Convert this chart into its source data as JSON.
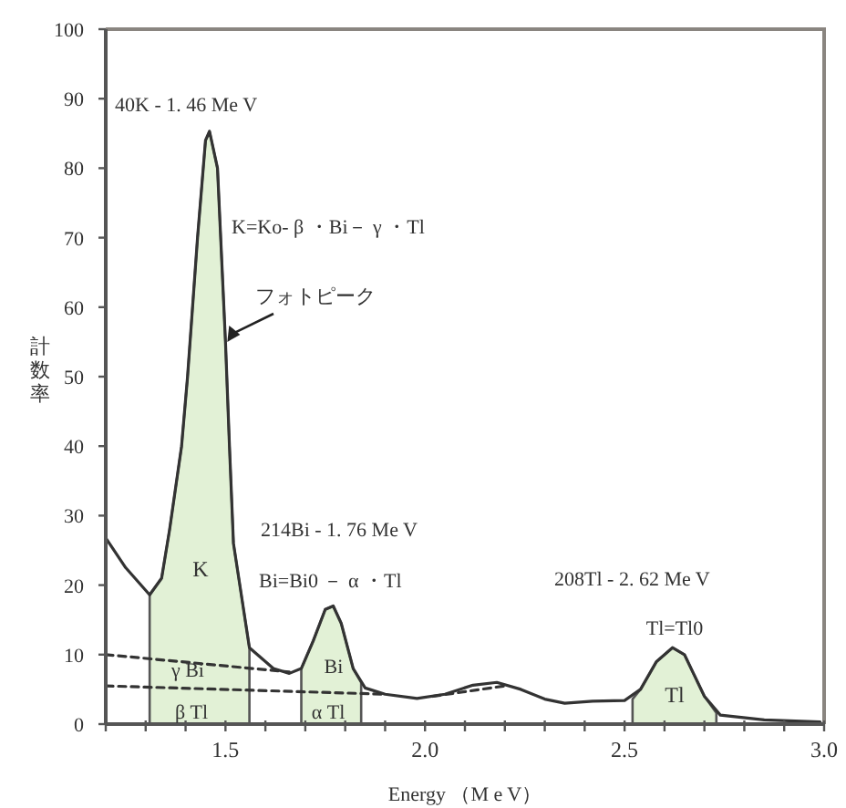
{
  "chart_data": {
    "type": "line",
    "xlabel": "Energy （M e V）",
    "ylabel": "計数率",
    "xlim": [
      1.2,
      3.0
    ],
    "ylim": [
      0,
      100
    ],
    "xticks": [
      {
        "value": 1.2,
        "label": null
      },
      {
        "value": 1.3,
        "label": null
      },
      {
        "value": 1.4,
        "label": null
      },
      1.5,
      {
        "value": 1.6,
        "label": null
      },
      {
        "value": 1.7,
        "label": null
      },
      {
        "value": 1.8,
        "label": null
      },
      {
        "value": 1.9,
        "label": null
      },
      {
        "value": 2.0,
        "label": "2.0"
      },
      {
        "value": 2.1,
        "label": null
      },
      {
        "value": 2.2,
        "label": null
      },
      {
        "value": 2.3,
        "label": null
      },
      {
        "value": 2.4,
        "label": null
      },
      2.5,
      {
        "value": 2.6,
        "label": null
      },
      {
        "value": 2.7,
        "label": null
      },
      {
        "value": 2.8,
        "label": null
      },
      {
        "value": 2.9,
        "label": null
      },
      {
        "value": 3.0,
        "label": "3.0"
      }
    ],
    "yticks": [
      0,
      10,
      20,
      30,
      40,
      50,
      60,
      70,
      80,
      90,
      100
    ],
    "grid": false,
    "marker": "none",
    "series": [
      {
        "type": "area",
        "color": "#e2f1d6",
        "x": [
          1.31,
          1.34,
          1.36,
          1.39,
          1.405,
          1.43,
          1.45,
          1.46,
          1.48,
          1.5,
          1.51,
          1.52,
          1.56
        ],
        "values": [
          18.6,
          21,
          28,
          40,
          50,
          70,
          84,
          85.3,
          80,
          55,
          40,
          26,
          11
        ]
      },
      {
        "type": "area",
        "color": "#e2f1d6",
        "x": [
          1.69,
          1.72,
          1.75,
          1.77,
          1.79,
          1.82,
          1.84
        ],
        "values": [
          8,
          12,
          16.5,
          17,
          14.5,
          8,
          6
        ]
      },
      {
        "type": "area",
        "color": "#e2f1d6",
        "x": [
          2.52,
          2.54,
          2.58,
          2.62,
          2.65,
          2.7,
          2.73
        ],
        "values": [
          3.6,
          5,
          9,
          11,
          10,
          4,
          1.6
        ]
      },
      {
        "color": "#333333",
        "line_style": "solid",
        "x": [
          1.2,
          1.25,
          1.31,
          1.34,
          1.36,
          1.39,
          1.405,
          1.43,
          1.45,
          1.46,
          1.48,
          1.5,
          1.51,
          1.52,
          1.56,
          1.62,
          1.66,
          1.69,
          1.72,
          1.75,
          1.77,
          1.79,
          1.82,
          1.85,
          1.9,
          1.98,
          2.05,
          2.12,
          2.18,
          2.24,
          2.3,
          2.35,
          2.42,
          2.5,
          2.54,
          2.58,
          2.62,
          2.65,
          2.7,
          2.74,
          2.85,
          2.99
        ],
        "values": [
          26.8,
          22.5,
          18.6,
          21,
          28,
          40,
          50,
          70,
          84,
          85.3,
          80,
          55,
          40,
          26,
          11,
          8,
          7.3,
          8,
          12,
          16.5,
          17,
          14.5,
          8,
          5.2,
          4.3,
          3.7,
          4.3,
          5.6,
          6,
          5,
          3.6,
          3,
          3.3,
          3.4,
          5,
          9,
          11,
          10,
          4,
          1.3,
          0.6,
          0.3
        ]
      },
      {
        "color": "#333333",
        "line_style": "dashed",
        "x": [
          1.2,
          1.66
        ],
        "values": [
          10,
          7.5
        ]
      },
      {
        "color": "#333333",
        "line_style": "dashed",
        "x": [
          1.2,
          1.9
        ],
        "values": [
          5.5,
          4.3
        ]
      },
      {
        "color": "#333333",
        "line_style": "dashed",
        "x": [
          2.02,
          2.2
        ],
        "values": [
          4,
          5.5
        ]
      }
    ],
    "annotations": [
      "40K - 1. 46 Me V",
      "K=Ko- β ・Bi－ γ ・Tl",
      {
        "text": "フォトピーク",
        "x": 1.5,
        "y": 55
      },
      "K",
      "214Bi - 1. 76 Me V",
      "Bi=Bi0 － α ・Tl",
      "208Tl - 2. 62 Me V",
      "Tl=Tl0",
      "Bi",
      "Tl",
      "γ Bi",
      "β Tl",
      "α Tl"
    ]
  }
}
